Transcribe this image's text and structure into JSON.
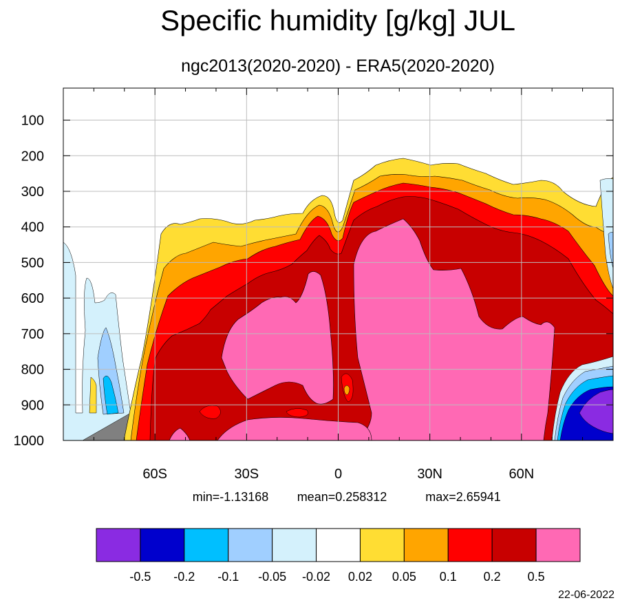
{
  "chart_data": {
    "type": "contour",
    "title": "Specific humidity [g/kg] JUL",
    "subtitle": "ngc2013(2020-2020) - ERA5(2020-2020)",
    "x_ticks": [
      "60S",
      "30S",
      "0",
      "30N",
      "60N"
    ],
    "x_tick_values": [
      -60,
      -30,
      0,
      30,
      60
    ],
    "xlim": [
      -90,
      90
    ],
    "y_ticks": [
      "100",
      "200",
      "300",
      "400",
      "500",
      "600",
      "700",
      "800",
      "900",
      "1000"
    ],
    "y_tick_values": [
      100,
      200,
      300,
      400,
      500,
      600,
      700,
      800,
      900,
      1000
    ],
    "ylim": [
      1000,
      10
    ],
    "grid": true,
    "stats": {
      "min": "min=-1.13168",
      "mean": "mean=0.258312",
      "max": "max=2.65941"
    },
    "colorbar": {
      "levels": [
        "-0.5",
        "-0.2",
        "-0.1",
        "-0.05",
        "-0.02",
        "0.02",
        "0.05",
        "0.1",
        "0.2",
        "0.5"
      ],
      "colors": [
        "#8a2be2",
        "#0000cd",
        "#00bfff",
        "#a0cfff",
        "#d4f1fc",
        "#ffffff",
        "#ffdd33",
        "#ffa500",
        "#ff0000",
        "#c80000",
        "#ff69b4"
      ]
    },
    "missing_color": "#808080",
    "date": "22-06-2022"
  }
}
